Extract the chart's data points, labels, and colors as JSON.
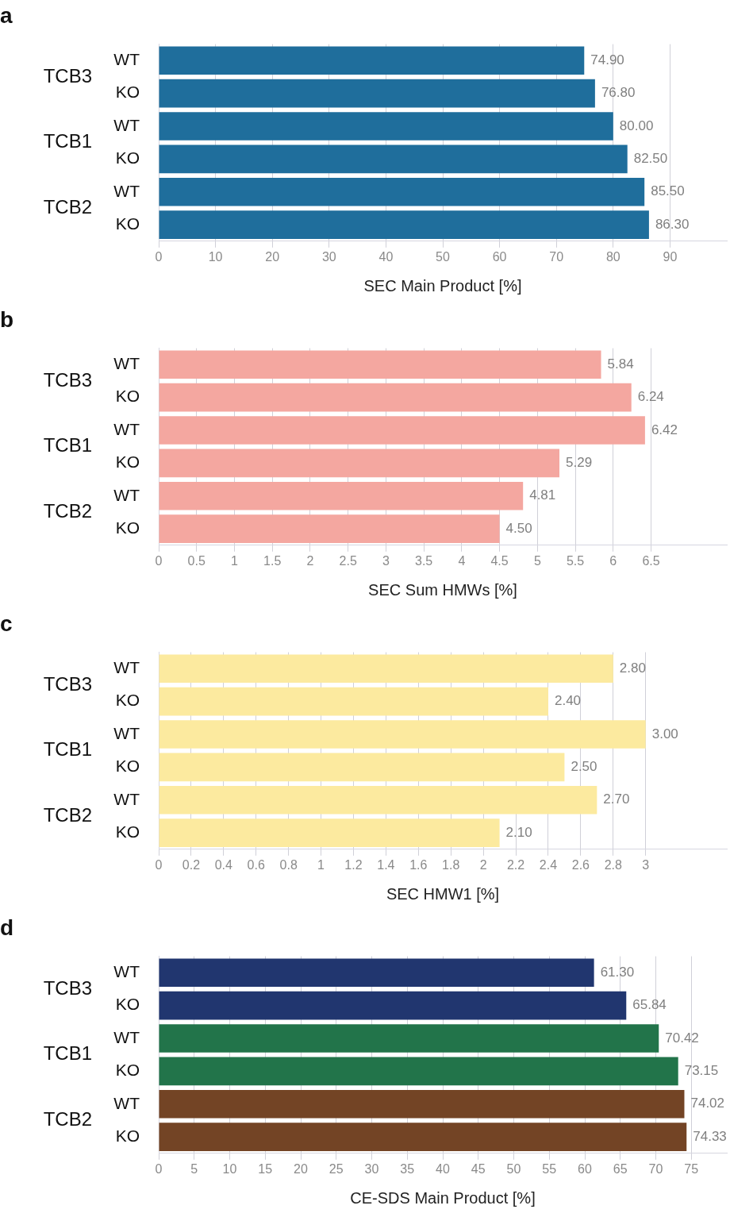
{
  "chart_data": [
    {
      "type": "bar",
      "orientation": "horizontal",
      "title": "a",
      "xlabel": "SEC Main Product [%]",
      "categories": [
        "WT",
        "KO",
        "WT",
        "KO",
        "WT",
        "KO"
      ],
      "annotations": [
        "TCB3",
        "TCB1",
        "TCB2"
      ],
      "values": [
        74.9,
        76.8,
        80.0,
        82.5,
        85.5,
        86.3
      ],
      "value_labels": [
        "74.90",
        "76.80",
        "80.00",
        "82.50",
        "85.50",
        "86.30"
      ],
      "color": "#1f6e9c",
      "xlim": [
        0,
        100
      ],
      "xticks": [
        0,
        10,
        20,
        30,
        40,
        50,
        60,
        70,
        80,
        90
      ],
      "grid": "x",
      "legend": false
    },
    {
      "type": "bar",
      "orientation": "horizontal",
      "title": "b",
      "xlabel": "SEC Sum HMWs [%]",
      "categories": [
        "WT",
        "KO",
        "WT",
        "KO",
        "WT",
        "KO"
      ],
      "annotations": [
        "TCB3",
        "TCB1",
        "TCB2"
      ],
      "values": [
        5.84,
        6.24,
        6.42,
        5.29,
        4.81,
        4.5
      ],
      "value_labels": [
        "5.84",
        "6.24",
        "6.42",
        "5.29",
        "4.81",
        "4.50"
      ],
      "color": "#f4a7a0",
      "xlim": [
        0,
        7.5
      ],
      "xticks": [
        0,
        0.5,
        1,
        1.5,
        2,
        2.5,
        3,
        3.5,
        4,
        4.5,
        5,
        5.5,
        6,
        6.5
      ],
      "grid": "x",
      "legend": false
    },
    {
      "type": "bar",
      "orientation": "horizontal",
      "title": "c",
      "xlabel": "SEC HMW1 [%]",
      "categories": [
        "WT",
        "KO",
        "WT",
        "KO",
        "WT",
        "KO"
      ],
      "annotations": [
        "TCB3",
        "TCB1",
        "TCB2"
      ],
      "values": [
        2.8,
        2.4,
        3.0,
        2.5,
        2.7,
        2.1
      ],
      "value_labels": [
        "2.80",
        "2.40",
        "3.00",
        "2.50",
        "2.70",
        "2.10"
      ],
      "color": "#fcea9f",
      "xlim": [
        0,
        3.5
      ],
      "xticks": [
        0,
        0.2,
        0.4,
        0.6,
        0.8,
        1,
        1.2,
        1.4,
        1.6,
        1.8,
        2,
        2.2,
        2.4,
        2.6,
        2.8,
        3
      ],
      "grid": "x",
      "legend": false
    },
    {
      "type": "bar",
      "orientation": "horizontal",
      "title": "d",
      "xlabel": "CE-SDS Main Product [%]",
      "categories": [
        "WT",
        "KO",
        "WT",
        "KO",
        "WT",
        "KO"
      ],
      "annotations": [
        "TCB3",
        "TCB1",
        "TCB2"
      ],
      "values": [
        61.3,
        65.84,
        70.42,
        73.15,
        74.02,
        74.33
      ],
      "value_labels": [
        "61.30",
        "65.84",
        "70.42",
        "73.15",
        "74.02",
        "74.33"
      ],
      "colors": [
        "#21366f",
        "#21366f",
        "#22744a",
        "#22744a",
        "#734425",
        "#734425"
      ],
      "xlim": [
        0,
        80
      ],
      "xticks": [
        0,
        5,
        10,
        15,
        20,
        25,
        30,
        35,
        40,
        45,
        50,
        55,
        60,
        65,
        70,
        75
      ],
      "grid": "x",
      "legend": false
    }
  ]
}
